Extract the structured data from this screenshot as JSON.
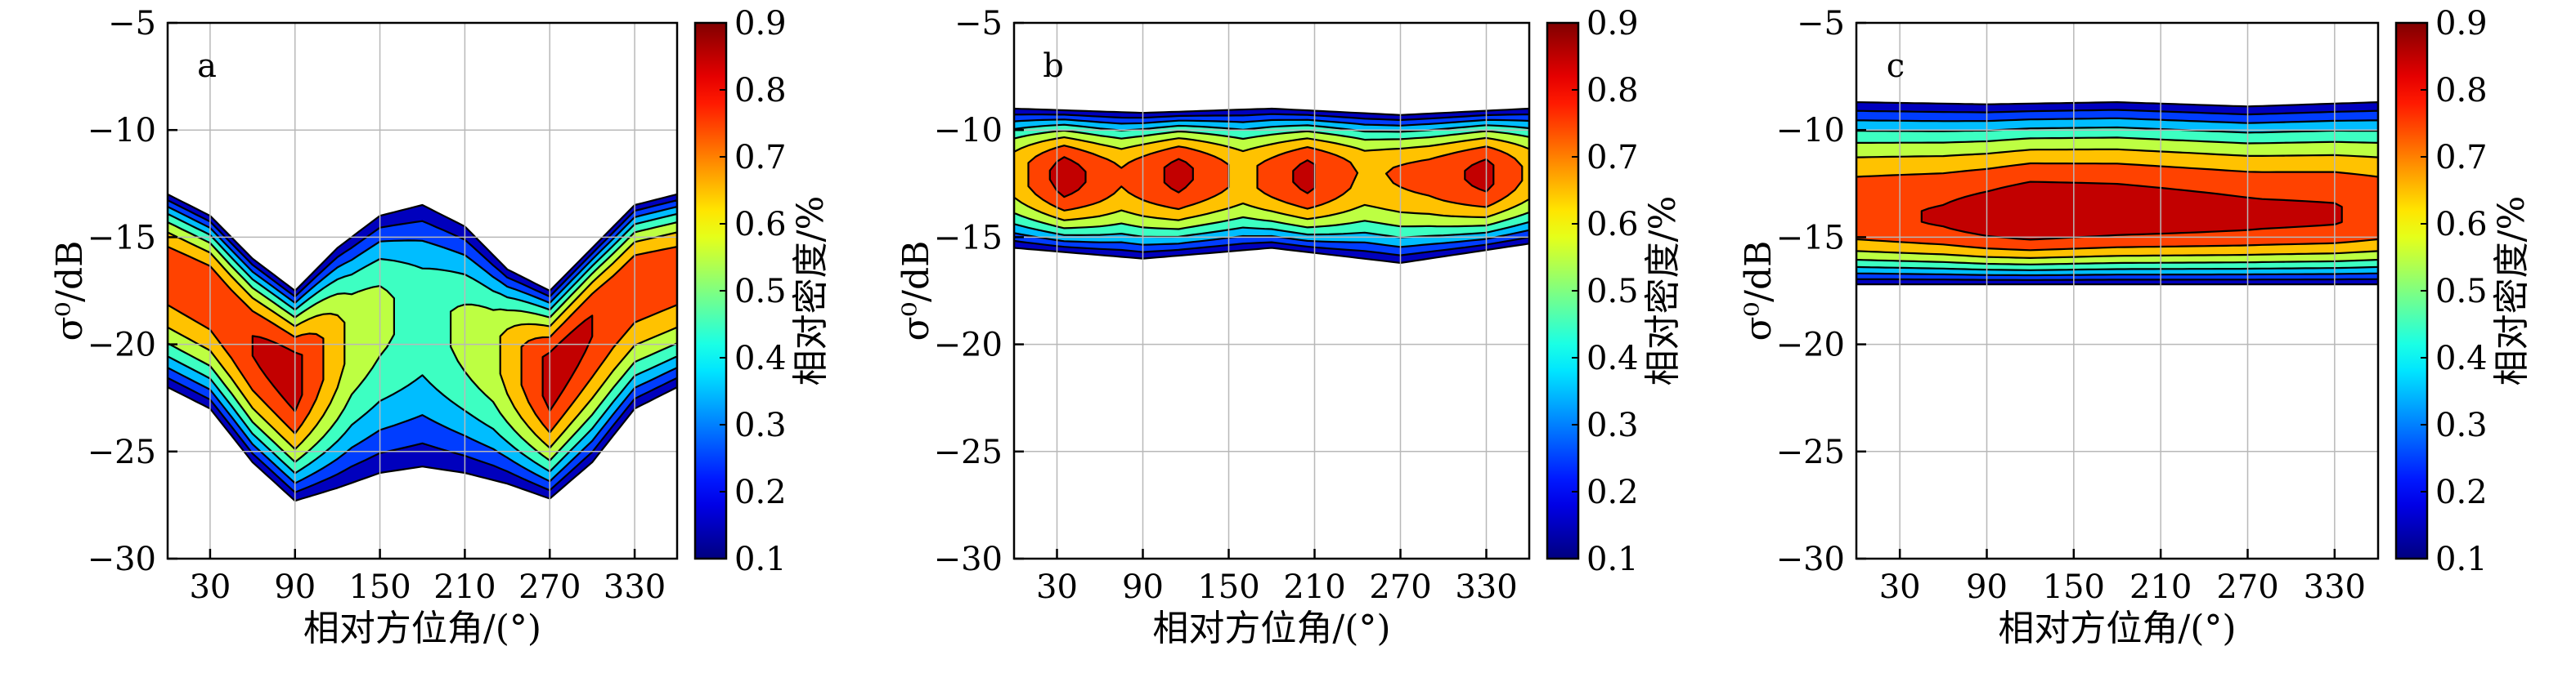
{
  "chart_data": [
    {
      "type": "heatmap",
      "panel_label": "a",
      "xlabel": "相对方位角/(°)",
      "ylabel": "σ⁰/dB",
      "xlim": [
        0,
        360
      ],
      "ylim": [
        -30,
        -5
      ],
      "xticks": [
        "30",
        "90",
        "150",
        "210",
        "270",
        "330"
      ],
      "yticks": [
        "-5",
        "-10",
        "-15",
        "-20",
        "-25",
        "-30"
      ],
      "colorbar": {
        "label": "相对密度/%",
        "range": [
          0.1,
          0.9
        ],
        "ticks": [
          "0.9",
          "0.8",
          "0.7",
          "0.6",
          "0.5",
          "0.4",
          "0.3",
          "0.2",
          "0.1"
        ]
      },
      "grid": true,
      "density_model": {
        "ridge": [
          [
            0,
            -16.5
          ],
          [
            30,
            -17.5
          ],
          [
            60,
            -20.0
          ],
          [
            90,
            -21.5
          ],
          [
            120,
            -20.0
          ],
          [
            150,
            -18.5
          ],
          [
            180,
            -18.5
          ],
          [
            210,
            -19.5
          ],
          [
            240,
            -20.5
          ],
          [
            270,
            -21.5
          ],
          [
            300,
            -19.0
          ],
          [
            330,
            -17.0
          ],
          [
            360,
            -16.5
          ]
        ],
        "upper_edge": [
          [
            0,
            -13.0
          ],
          [
            30,
            -14.0
          ],
          [
            60,
            -16.0
          ],
          [
            90,
            -17.5
          ],
          [
            120,
            -15.5
          ],
          [
            150,
            -14.0
          ],
          [
            180,
            -13.5
          ],
          [
            210,
            -14.5
          ],
          [
            240,
            -16.5
          ],
          [
            270,
            -17.5
          ],
          [
            300,
            -15.5
          ],
          [
            330,
            -13.5
          ],
          [
            360,
            -13.0
          ]
        ],
        "lower_edge": [
          [
            0,
            -22.0
          ],
          [
            30,
            -23.0
          ],
          [
            60,
            -25.5
          ],
          [
            90,
            -27.3
          ],
          [
            120,
            -26.7
          ],
          [
            150,
            -26.0
          ],
          [
            180,
            -25.7
          ],
          [
            210,
            -26.0
          ],
          [
            240,
            -26.5
          ],
          [
            270,
            -27.2
          ],
          [
            300,
            -25.5
          ],
          [
            330,
            -23.0
          ],
          [
            360,
            -22.0
          ]
        ],
        "peak_level": [
          [
            0,
            0.8
          ],
          [
            45,
            0.82
          ],
          [
            90,
            0.9
          ],
          [
            130,
            0.62
          ],
          [
            180,
            0.5
          ],
          [
            230,
            0.62
          ],
          [
            270,
            0.9
          ],
          [
            315,
            0.82
          ],
          [
            360,
            0.8
          ]
        ]
      }
    },
    {
      "type": "heatmap",
      "panel_label": "b",
      "xlabel": "相对方位角/(°)",
      "ylabel": "σ⁰/dB",
      "xlim": [
        0,
        360
      ],
      "ylim": [
        -30,
        -5
      ],
      "xticks": [
        "30",
        "90",
        "150",
        "210",
        "270",
        "330"
      ],
      "yticks": [
        "-5",
        "-10",
        "-15",
        "-20",
        "-25",
        "-30"
      ],
      "colorbar": {
        "label": "相对密度/%",
        "range": [
          0.1,
          0.9
        ],
        "ticks": [
          "0.9",
          "0.8",
          "0.7",
          "0.6",
          "0.5",
          "0.4",
          "0.3",
          "0.2",
          "0.1"
        ]
      },
      "grid": true,
      "density_model": {
        "ridge": [
          [
            0,
            -12.0
          ],
          [
            60,
            -12.2
          ],
          [
            120,
            -12.0
          ],
          [
            180,
            -12.2
          ],
          [
            240,
            -12.0
          ],
          [
            300,
            -12.1
          ],
          [
            360,
            -12.0
          ]
        ],
        "upper_edge": [
          [
            0,
            -9.0
          ],
          [
            90,
            -9.2
          ],
          [
            180,
            -9.0
          ],
          [
            270,
            -9.3
          ],
          [
            360,
            -9.0
          ]
        ],
        "lower_edge": [
          [
            0,
            -15.5
          ],
          [
            90,
            -16.0
          ],
          [
            180,
            -15.5
          ],
          [
            270,
            -16.2
          ],
          [
            360,
            -15.3
          ]
        ],
        "peak_level": [
          [
            0,
            0.7
          ],
          [
            35,
            0.9
          ],
          [
            75,
            0.75
          ],
          [
            115,
            0.88
          ],
          [
            160,
            0.72
          ],
          [
            205,
            0.88
          ],
          [
            245,
            0.72
          ],
          [
            290,
            0.78
          ],
          [
            330,
            0.88
          ],
          [
            360,
            0.72
          ]
        ]
      }
    },
    {
      "type": "heatmap",
      "panel_label": "c",
      "xlabel": "相对方位角/(°)",
      "ylabel": "σ⁰/dB",
      "xlim": [
        0,
        360
      ],
      "ylim": [
        -30,
        -5
      ],
      "xticks": [
        "30",
        "90",
        "150",
        "210",
        "270",
        "330"
      ],
      "yticks": [
        "-5",
        "-10",
        "-15",
        "-20",
        "-25",
        "-30"
      ],
      "colorbar": {
        "label": "相对密度/%",
        "range": [
          0.1,
          0.9
        ],
        "ticks": [
          "0.9",
          "0.8",
          "0.7",
          "0.6",
          "0.5",
          "0.4",
          "0.3",
          "0.2",
          "0.1"
        ]
      },
      "grid": true,
      "density_model": {
        "ridge": [
          [
            0,
            -14.0
          ],
          [
            90,
            -14.2
          ],
          [
            180,
            -14.0
          ],
          [
            270,
            -14.1
          ],
          [
            360,
            -14.0
          ]
        ],
        "upper_edge": [
          [
            0,
            -8.7
          ],
          [
            90,
            -8.8
          ],
          [
            180,
            -8.7
          ],
          [
            270,
            -8.9
          ],
          [
            360,
            -8.7
          ]
        ],
        "lower_edge": [
          [
            0,
            -17.2
          ],
          [
            180,
            -17.2
          ],
          [
            360,
            -17.2
          ]
        ],
        "peak_level": [
          [
            0,
            0.82
          ],
          [
            60,
            0.85
          ],
          [
            120,
            0.92
          ],
          [
            180,
            0.9
          ],
          [
            230,
            0.88
          ],
          [
            280,
            0.86
          ],
          [
            330,
            0.85
          ],
          [
            360,
            0.82
          ]
        ]
      }
    }
  ]
}
